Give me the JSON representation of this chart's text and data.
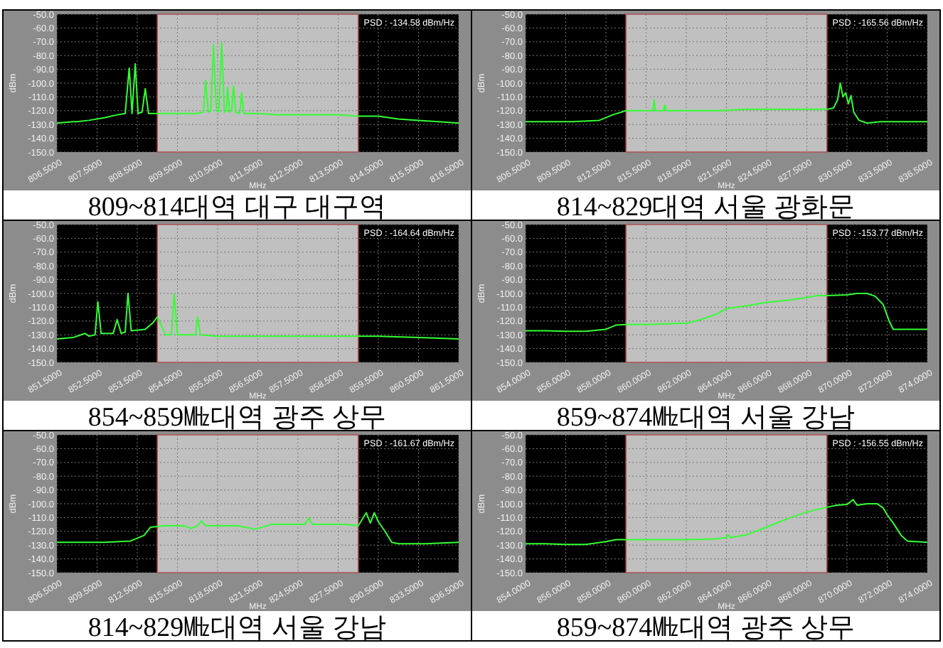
{
  "chart_data": [
    {
      "type": "line",
      "title": "809~814대역 대구 대구역",
      "xlabel": "MHz",
      "ylabel": "dBm",
      "annotations": [
        "PSD : -134.58 dBm/Hz"
      ],
      "color": "#33ff33",
      "grid": true,
      "xlim": [
        806.5,
        816.5
      ],
      "ylim": [
        -150,
        -50
      ],
      "xticks": [
        {
          "value": 806.5,
          "label": "806.5000"
        },
        {
          "value": 807.5,
          "label": "807.5000"
        },
        {
          "value": 808.5,
          "label": "808.5000"
        },
        {
          "value": 809.5,
          "label": "809.5000"
        },
        {
          "value": 810.5,
          "label": "810.5000"
        },
        {
          "value": 811.5,
          "label": "811.5000"
        },
        {
          "value": 812.5,
          "label": "812.5000"
        },
        {
          "value": 813.5,
          "label": "813.5000"
        },
        {
          "value": 814.5,
          "label": "814.5000"
        },
        {
          "value": 815.5,
          "label": "815.5000"
        },
        {
          "value": 816.5,
          "label": "816.5000"
        }
      ],
      "yticks": [
        {
          "value": -50,
          "label": "-50.0"
        },
        {
          "value": -60,
          "label": "-60.0"
        },
        {
          "value": -70,
          "label": "-70.0"
        },
        {
          "value": -80,
          "label": "-80.0"
        },
        {
          "value": -90,
          "label": "-90.0"
        },
        {
          "value": -100,
          "label": "-100.0"
        },
        {
          "value": -110,
          "label": "-110.0"
        },
        {
          "value": -120,
          "label": "-120.0"
        },
        {
          "value": -130,
          "label": "-130.0"
        },
        {
          "value": -140,
          "label": "-140.0"
        },
        {
          "value": -150,
          "label": "-150.0"
        }
      ],
      "bands": [
        {
          "axis": "x",
          "from": 809,
          "to": 814,
          "color": "#c0c0c0"
        }
      ],
      "x": [
        806.5,
        806.9,
        807.0,
        807.3,
        807.7,
        808.0,
        808.2,
        808.3,
        808.37,
        808.45,
        808.52,
        808.62,
        808.7,
        808.78,
        808.9,
        809.5,
        810.0,
        810.15,
        810.2,
        810.27,
        810.33,
        810.4,
        810.47,
        810.53,
        810.6,
        810.67,
        810.72,
        810.75,
        810.8,
        810.85,
        810.9,
        810.95,
        811.05,
        811.1,
        811.15,
        811.5,
        812.0,
        812.5,
        813.0,
        813.5,
        814.0,
        814.5,
        815.0,
        815.5,
        816.0,
        816.5
      ],
      "values": [
        -129,
        -128,
        -128,
        -127,
        -125,
        -123,
        -122,
        -89,
        -122,
        -86,
        -122,
        -121,
        -104,
        -122,
        -122,
        -122,
        -122,
        -121,
        -98,
        -121,
        -120,
        -72,
        -120,
        -121,
        -71,
        -121,
        -120,
        -103,
        -121,
        -120,
        -102,
        -121,
        -122,
        -107,
        -122,
        -122,
        -123,
        -123,
        -123,
        -123,
        -124,
        -124,
        -126,
        -127,
        -128,
        -129
      ]
    },
    {
      "type": "line",
      "title": "814~829대역 서울 광화문",
      "xlabel": "MHz",
      "ylabel": "dBm",
      "annotations": [
        "PSD : -165.56 dBm/Hz"
      ],
      "color": "#33ff33",
      "grid": true,
      "xlim": [
        806.5,
        836.5
      ],
      "ylim": [
        -150,
        -50
      ],
      "xticks": [
        {
          "value": 806.5,
          "label": "806.5000"
        },
        {
          "value": 809.5,
          "label": "809.5000"
        },
        {
          "value": 812.5,
          "label": "812.5000"
        },
        {
          "value": 815.5,
          "label": "815.5000"
        },
        {
          "value": 818.5,
          "label": "818.5000"
        },
        {
          "value": 821.5,
          "label": "821.5000"
        },
        {
          "value": 824.5,
          "label": "824.5000"
        },
        {
          "value": 827.5,
          "label": "827.5000"
        },
        {
          "value": 830.5,
          "label": "830.5000"
        },
        {
          "value": 833.5,
          "label": "833.5000"
        },
        {
          "value": 836.5,
          "label": "836.5000"
        }
      ],
      "yticks": [
        {
          "value": -50,
          "label": "-50.0"
        },
        {
          "value": -60,
          "label": "-60.0"
        },
        {
          "value": -70,
          "label": "-70.0"
        },
        {
          "value": -80,
          "label": "-80.0"
        },
        {
          "value": -90,
          "label": "-90.0"
        },
        {
          "value": -100,
          "label": "-100.0"
        },
        {
          "value": -110,
          "label": "-110.0"
        },
        {
          "value": -120,
          "label": "-120.0"
        },
        {
          "value": -130,
          "label": "-130.0"
        },
        {
          "value": -140,
          "label": "-140.0"
        },
        {
          "value": -150,
          "label": "-150.0"
        }
      ],
      "bands": [
        {
          "axis": "x",
          "from": 814,
          "to": 829,
          "color": "#c0c0c0"
        }
      ],
      "x": [
        806.5,
        808,
        810,
        812,
        813,
        814,
        815,
        816,
        816.1,
        816.2,
        816.8,
        816.9,
        817,
        819,
        821,
        823,
        825,
        827,
        829,
        829.5,
        829.8,
        830,
        830.2,
        830.4,
        830.6,
        830.8,
        831,
        831.4,
        832,
        833,
        834,
        835,
        836.5
      ],
      "values": [
        -128,
        -128,
        -128,
        -127,
        -123,
        -120,
        -120,
        -120,
        -112,
        -120,
        -120,
        -116,
        -120,
        -120,
        -120,
        -119,
        -119,
        -119,
        -119,
        -118,
        -112,
        -100,
        -110,
        -107,
        -115,
        -109,
        -121,
        -127,
        -129,
        -128,
        -128,
        -128,
        -128
      ]
    },
    {
      "type": "line",
      "title": "854~859㎒대역 광주 상무",
      "xlabel": "MHz",
      "ylabel": "dBm",
      "annotations": [
        "PSD : -164.64 dBm/Hz"
      ],
      "color": "#33ff33",
      "grid": true,
      "xlim": [
        851.5,
        861.5
      ],
      "ylim": [
        -150,
        -50
      ],
      "xticks": [
        {
          "value": 851.5,
          "label": "851.5000"
        },
        {
          "value": 852.5,
          "label": "852.5000"
        },
        {
          "value": 853.5,
          "label": "853.5000"
        },
        {
          "value": 854.5,
          "label": "854.5000"
        },
        {
          "value": 855.5,
          "label": "855.5000"
        },
        {
          "value": 856.5,
          "label": "856.5000"
        },
        {
          "value": 857.5,
          "label": "857.5000"
        },
        {
          "value": 858.5,
          "label": "858.5000"
        },
        {
          "value": 859.5,
          "label": "859.5000"
        },
        {
          "value": 860.5,
          "label": "860.5000"
        },
        {
          "value": 861.5,
          "label": "861.5000"
        }
      ],
      "yticks": [
        {
          "value": -50,
          "label": "-50.0"
        },
        {
          "value": -60,
          "label": "-60.0"
        },
        {
          "value": -70,
          "label": "-70.0"
        },
        {
          "value": -80,
          "label": "-80.0"
        },
        {
          "value": -90,
          "label": "-90.0"
        },
        {
          "value": -100,
          "label": "-100.0"
        },
        {
          "value": -110,
          "label": "-110.0"
        },
        {
          "value": -120,
          "label": "-120.0"
        },
        {
          "value": -130,
          "label": "-130.0"
        },
        {
          "value": -140,
          "label": "-140.0"
        },
        {
          "value": -150,
          "label": "-150.0"
        }
      ],
      "bands": [
        {
          "axis": "x",
          "from": 854,
          "to": 859,
          "color": "#c0c0c0"
        }
      ],
      "x": [
        851.5,
        851.9,
        852.2,
        852.3,
        852.45,
        852.52,
        852.6,
        852.9,
        853.0,
        853.1,
        853.2,
        853.27,
        853.35,
        853.7,
        853.9,
        854.0,
        854.2,
        854.35,
        854.42,
        854.5,
        854.95,
        855.0,
        855.07,
        855.5,
        856.5,
        857.5,
        858.5,
        859.5,
        860.5,
        861.5
      ],
      "values": [
        -133,
        -132,
        -129,
        -131,
        -130,
        -106,
        -129,
        -129,
        -119,
        -129,
        -128,
        -100,
        -127,
        -126,
        -121,
        -117,
        -130,
        -130,
        -100,
        -130,
        -130,
        -117,
        -130,
        -131,
        -131,
        -131,
        -131,
        -131,
        -132,
        -133
      ]
    },
    {
      "type": "line",
      "title": "859~874㎒대역 서울 강남",
      "xlabel": "MHz",
      "ylabel": "dBm",
      "annotations": [
        "PSD : -153.77 dBm/Hz"
      ],
      "color": "#33ff33",
      "grid": true,
      "xlim": [
        854,
        874
      ],
      "ylim": [
        -150,
        -50
      ],
      "xticks": [
        {
          "value": 854,
          "label": "854.0000"
        },
        {
          "value": 856,
          "label": "856.0000"
        },
        {
          "value": 858,
          "label": "858.0000"
        },
        {
          "value": 860,
          "label": "860.0000"
        },
        {
          "value": 862,
          "label": "862.0000"
        },
        {
          "value": 864,
          "label": "864.0000"
        },
        {
          "value": 866,
          "label": "866.0000"
        },
        {
          "value": 868,
          "label": "868.0000"
        },
        {
          "value": 870,
          "label": "870.0000"
        },
        {
          "value": 872,
          "label": "872.0000"
        },
        {
          "value": 874,
          "label": "874.0000"
        }
      ],
      "yticks": [
        {
          "value": -50,
          "label": "-50.0"
        },
        {
          "value": -60,
          "label": "-60.0"
        },
        {
          "value": -70,
          "label": "-70.0"
        },
        {
          "value": -80,
          "label": "-80.0"
        },
        {
          "value": -90,
          "label": "-90.0"
        },
        {
          "value": -100,
          "label": "-100.0"
        },
        {
          "value": -110,
          "label": "-110.0"
        },
        {
          "value": -120,
          "label": "-120.0"
        },
        {
          "value": -130,
          "label": "-130.0"
        },
        {
          "value": -140,
          "label": "-140.0"
        },
        {
          "value": -150,
          "label": "-150.0"
        }
      ],
      "bands": [
        {
          "axis": "x",
          "from": 859,
          "to": 869,
          "color": "#c0c0c0"
        }
      ],
      "x": [
        854,
        855,
        856,
        857,
        858,
        858.5,
        859,
        860,
        861,
        862,
        862.5,
        863,
        863.5,
        864,
        865,
        866,
        867,
        868,
        868.5,
        869,
        870,
        870.5,
        871,
        871.4,
        871.8,
        872.1,
        872.3,
        873,
        874
      ],
      "values": [
        -127,
        -127,
        -127.5,
        -127.5,
        -126,
        -123,
        -122.5,
        -122.5,
        -122,
        -121.5,
        -120,
        -117.5,
        -115,
        -111,
        -109,
        -106.5,
        -105,
        -103,
        -101.5,
        -101.5,
        -101,
        -100,
        -100,
        -102,
        -108,
        -120,
        -126,
        -126,
        -126
      ]
    },
    {
      "type": "line",
      "title": "814~829㎒대역 서울 강남",
      "xlabel": "MHz",
      "ylabel": "dBm",
      "annotations": [
        "PSD : -161.67 dBm/Hz"
      ],
      "color": "#33ff33",
      "grid": true,
      "xlim": [
        806.5,
        836.5
      ],
      "ylim": [
        -150,
        -50
      ],
      "xticks": [
        {
          "value": 806.5,
          "label": "806.5000"
        },
        {
          "value": 809.5,
          "label": "809.5000"
        },
        {
          "value": 812.5,
          "label": "812.5000"
        },
        {
          "value": 815.5,
          "label": "815.5000"
        },
        {
          "value": 818.5,
          "label": "818.5000"
        },
        {
          "value": 821.5,
          "label": "821.5000"
        },
        {
          "value": 824.5,
          "label": "824.5000"
        },
        {
          "value": 827.5,
          "label": "827.5000"
        },
        {
          "value": 830.5,
          "label": "830.5000"
        },
        {
          "value": 833.5,
          "label": "833.5000"
        },
        {
          "value": 836.5,
          "label": "836.5000"
        }
      ],
      "yticks": [
        {
          "value": -50,
          "label": "-50.0"
        },
        {
          "value": -60,
          "label": "-60.0"
        },
        {
          "value": -70,
          "label": "-70.0"
        },
        {
          "value": -80,
          "label": "-80.0"
        },
        {
          "value": -90,
          "label": "-90.0"
        },
        {
          "value": -100,
          "label": "-100.0"
        },
        {
          "value": -110,
          "label": "-110.0"
        },
        {
          "value": -120,
          "label": "-120.0"
        },
        {
          "value": -130,
          "label": "-130.0"
        },
        {
          "value": -140,
          "label": "-140.0"
        },
        {
          "value": -150,
          "label": "-150.0"
        }
      ],
      "bands": [
        {
          "axis": "x",
          "from": 814,
          "to": 829,
          "color": "#c0c0c0"
        }
      ],
      "x": [
        806.5,
        808,
        810,
        812,
        813,
        813.5,
        814.5,
        816,
        816.5,
        817,
        817.3,
        817.6,
        818,
        820,
        821.3,
        822.5,
        824,
        825,
        825.3,
        825.6,
        827,
        828,
        829,
        829.6,
        829.9,
        830.2,
        830.5,
        831,
        831.5,
        832,
        834,
        836.5
      ],
      "values": [
        -128,
        -128,
        -128,
        -127,
        -123,
        -117,
        -116,
        -116,
        -118,
        -116,
        -112.5,
        -116,
        -116,
        -116,
        -118.5,
        -115,
        -115,
        -115,
        -110.5,
        -115,
        -115,
        -115,
        -116,
        -106.5,
        -114,
        -106.5,
        -113,
        -120,
        -128,
        -129,
        -129,
        -128
      ]
    },
    {
      "type": "line",
      "title": "859~874㎒대역 광주 상무",
      "xlabel": "MHz",
      "ylabel": "dBm",
      "annotations": [
        "PSD : -156.55 dBm/Hz"
      ],
      "color": "#33ff33",
      "grid": true,
      "xlim": [
        854,
        874
      ],
      "ylim": [
        -150,
        -50
      ],
      "xticks": [
        {
          "value": 854,
          "label": "854.0000"
        },
        {
          "value": 856,
          "label": "856.0000"
        },
        {
          "value": 858,
          "label": "858.0000"
        },
        {
          "value": 860,
          "label": "860.0000"
        },
        {
          "value": 862,
          "label": "862.0000"
        },
        {
          "value": 864,
          "label": "864.0000"
        },
        {
          "value": 866,
          "label": "866.0000"
        },
        {
          "value": 868,
          "label": "868.0000"
        },
        {
          "value": 870,
          "label": "870.0000"
        },
        {
          "value": 872,
          "label": "872.0000"
        },
        {
          "value": 874,
          "label": "874.0000"
        }
      ],
      "yticks": [
        {
          "value": -50,
          "label": "-50.0"
        },
        {
          "value": -60,
          "label": "-60.0"
        },
        {
          "value": -70,
          "label": "-70.0"
        },
        {
          "value": -80,
          "label": "-80.0"
        },
        {
          "value": -90,
          "label": "-90.0"
        },
        {
          "value": -100,
          "label": "-100.0"
        },
        {
          "value": -110,
          "label": "-110.0"
        },
        {
          "value": -120,
          "label": "-120.0"
        },
        {
          "value": -130,
          "label": "-130.0"
        },
        {
          "value": -140,
          "label": "-140.0"
        },
        {
          "value": -150,
          "label": "-150.0"
        }
      ],
      "bands": [
        {
          "axis": "x",
          "from": 859,
          "to": 869,
          "color": "#c0c0c0"
        }
      ],
      "x": [
        854,
        855,
        856,
        857,
        858,
        858.5,
        860,
        862,
        863.5,
        864,
        864.1,
        864.2,
        865,
        866,
        867,
        868,
        869,
        869.5,
        870,
        870.3,
        870.5,
        871,
        871.5,
        871.8,
        872,
        872.3,
        872.7,
        873,
        874
      ],
      "values": [
        -129,
        -129,
        -129.5,
        -129.5,
        -127.5,
        -126,
        -126,
        -126,
        -125.5,
        -124.5,
        -122.5,
        -124.5,
        -122.5,
        -117,
        -111,
        -106,
        -102.5,
        -101,
        -100.5,
        -97,
        -101,
        -100,
        -100,
        -103,
        -108,
        -114,
        -123,
        -127,
        -128
      ]
    }
  ]
}
